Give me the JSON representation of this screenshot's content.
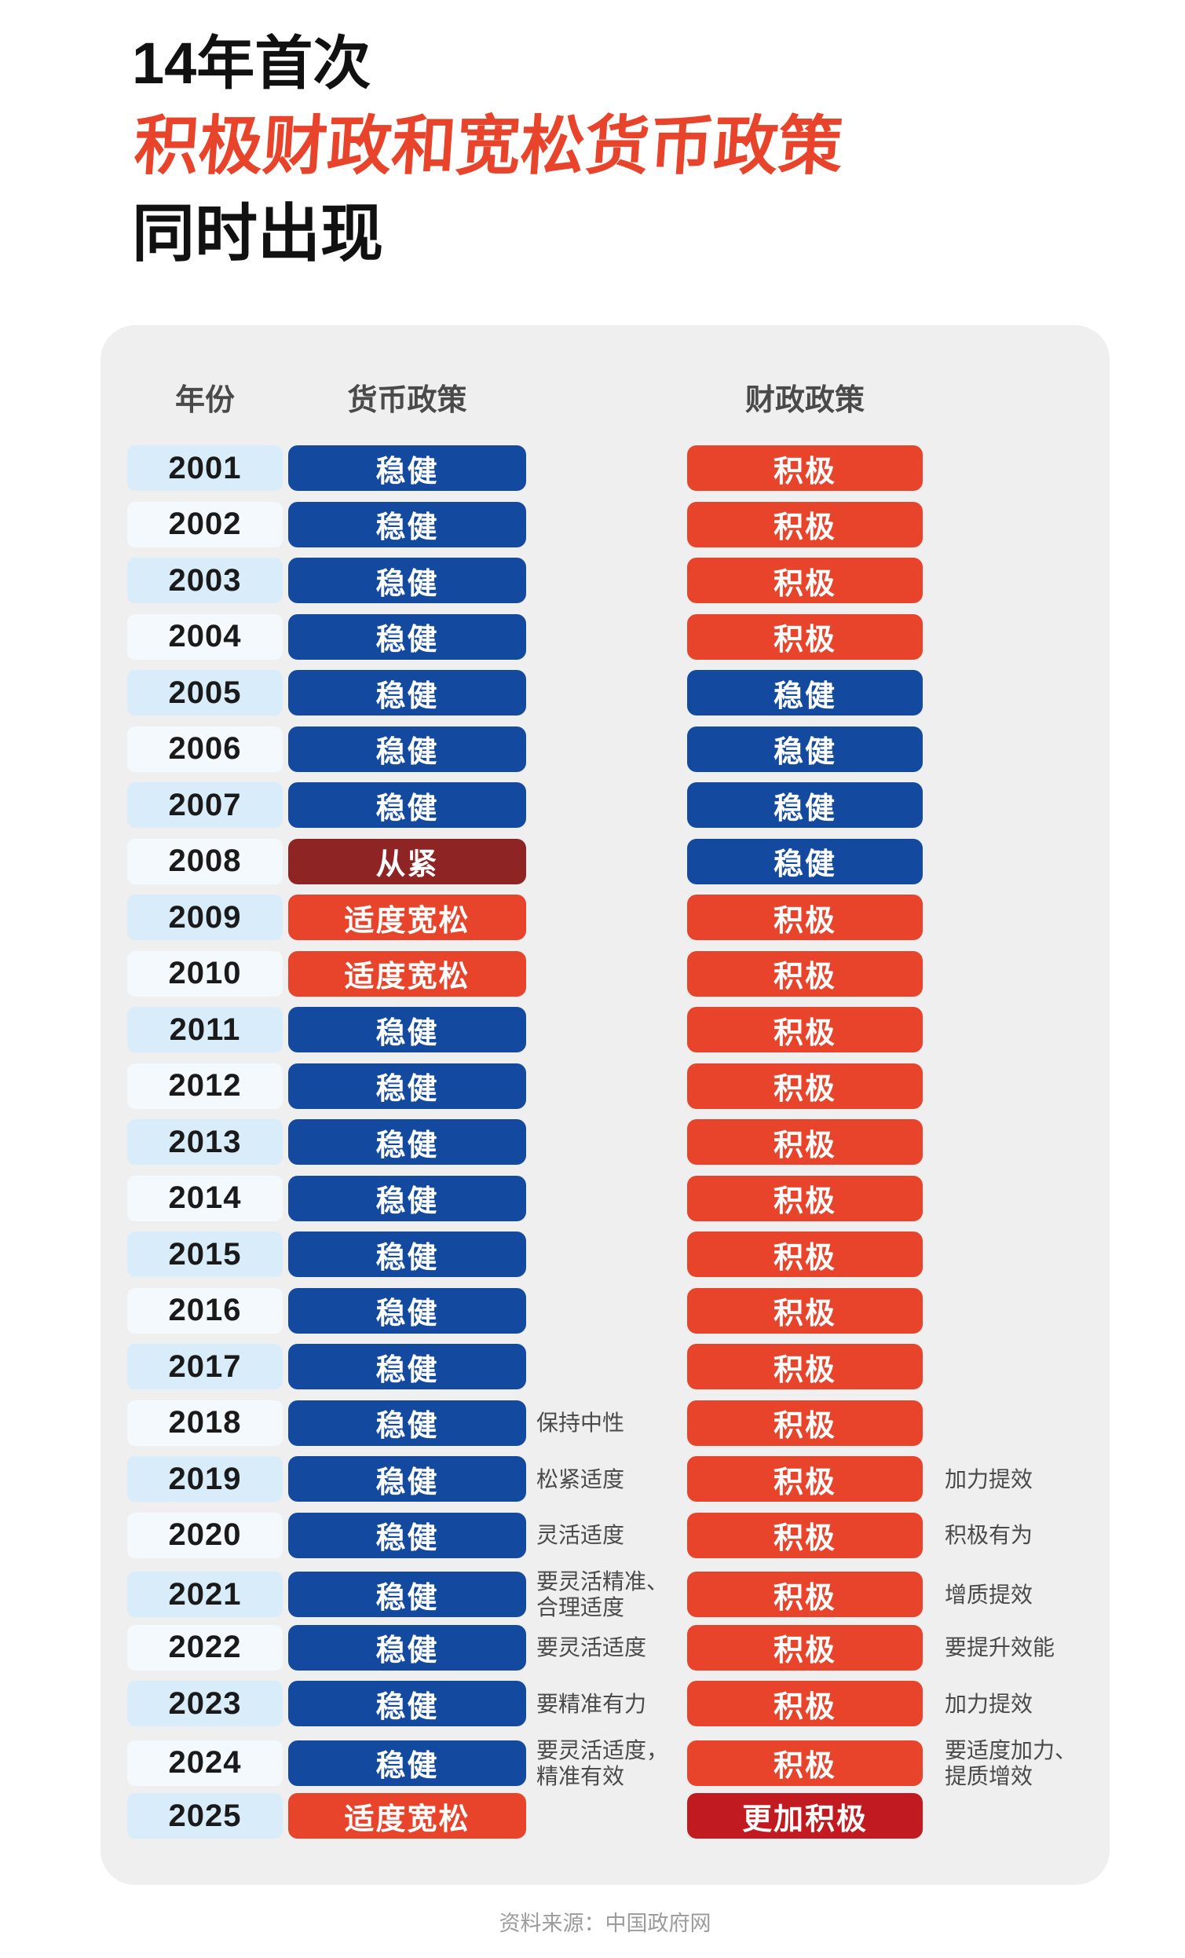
{
  "title": {
    "line1": "14年首次",
    "line2": "积极财政和宽松货币政策",
    "line3": "同时出现"
  },
  "table": {
    "headers": {
      "year": "年份",
      "monetary": "货币政策",
      "fiscal": "财政政策"
    },
    "rows": [
      {
        "year": "2001",
        "monetary": {
          "label": "稳健",
          "style": "blue"
        },
        "fiscal": {
          "label": "积极",
          "style": "red"
        }
      },
      {
        "year": "2002",
        "monetary": {
          "label": "稳健",
          "style": "blue"
        },
        "fiscal": {
          "label": "积极",
          "style": "red"
        }
      },
      {
        "year": "2003",
        "monetary": {
          "label": "稳健",
          "style": "blue"
        },
        "fiscal": {
          "label": "积极",
          "style": "red"
        }
      },
      {
        "year": "2004",
        "monetary": {
          "label": "稳健",
          "style": "blue"
        },
        "fiscal": {
          "label": "积极",
          "style": "red"
        }
      },
      {
        "year": "2005",
        "monetary": {
          "label": "稳健",
          "style": "blue"
        },
        "fiscal": {
          "label": "稳健",
          "style": "blue"
        }
      },
      {
        "year": "2006",
        "monetary": {
          "label": "稳健",
          "style": "blue"
        },
        "fiscal": {
          "label": "稳健",
          "style": "blue"
        }
      },
      {
        "year": "2007",
        "monetary": {
          "label": "稳健",
          "style": "blue"
        },
        "fiscal": {
          "label": "稳健",
          "style": "blue"
        }
      },
      {
        "year": "2008",
        "monetary": {
          "label": "从紧",
          "style": "maroon"
        },
        "fiscal": {
          "label": "稳健",
          "style": "blue"
        }
      },
      {
        "year": "2009",
        "monetary": {
          "label": "适度宽松",
          "style": "red"
        },
        "fiscal": {
          "label": "积极",
          "style": "red"
        }
      },
      {
        "year": "2010",
        "monetary": {
          "label": "适度宽松",
          "style": "red"
        },
        "fiscal": {
          "label": "积极",
          "style": "red"
        }
      },
      {
        "year": "2011",
        "monetary": {
          "label": "稳健",
          "style": "blue"
        },
        "fiscal": {
          "label": "积极",
          "style": "red"
        }
      },
      {
        "year": "2012",
        "monetary": {
          "label": "稳健",
          "style": "blue"
        },
        "fiscal": {
          "label": "积极",
          "style": "red"
        }
      },
      {
        "year": "2013",
        "monetary": {
          "label": "稳健",
          "style": "blue"
        },
        "fiscal": {
          "label": "积极",
          "style": "red"
        }
      },
      {
        "year": "2014",
        "monetary": {
          "label": "稳健",
          "style": "blue"
        },
        "fiscal": {
          "label": "积极",
          "style": "red"
        }
      },
      {
        "year": "2015",
        "monetary": {
          "label": "稳健",
          "style": "blue"
        },
        "fiscal": {
          "label": "积极",
          "style": "red"
        }
      },
      {
        "year": "2016",
        "monetary": {
          "label": "稳健",
          "style": "blue"
        },
        "fiscal": {
          "label": "积极",
          "style": "red"
        }
      },
      {
        "year": "2017",
        "monetary": {
          "label": "稳健",
          "style": "blue"
        },
        "fiscal": {
          "label": "积极",
          "style": "red"
        }
      },
      {
        "year": "2018",
        "monetary": {
          "label": "稳健",
          "style": "blue",
          "note": "保持中性"
        },
        "fiscal": {
          "label": "积极",
          "style": "red"
        }
      },
      {
        "year": "2019",
        "monetary": {
          "label": "稳健",
          "style": "blue",
          "note": "松紧适度"
        },
        "fiscal": {
          "label": "积极",
          "style": "red",
          "note": "加力提效"
        }
      },
      {
        "year": "2020",
        "monetary": {
          "label": "稳健",
          "style": "blue",
          "note": "灵活适度"
        },
        "fiscal": {
          "label": "积极",
          "style": "red",
          "note": "积极有为"
        }
      },
      {
        "year": "2021",
        "monetary": {
          "label": "稳健",
          "style": "blue",
          "note": "要灵活精准、\n合理适度"
        },
        "fiscal": {
          "label": "积极",
          "style": "red",
          "note": "增质提效"
        }
      },
      {
        "year": "2022",
        "monetary": {
          "label": "稳健",
          "style": "blue",
          "note": "要灵活适度"
        },
        "fiscal": {
          "label": "积极",
          "style": "red",
          "note": "要提升效能"
        }
      },
      {
        "year": "2023",
        "monetary": {
          "label": "稳健",
          "style": "blue",
          "note": "要精准有力"
        },
        "fiscal": {
          "label": "积极",
          "style": "red",
          "note": "加力提效"
        }
      },
      {
        "year": "2024",
        "monetary": {
          "label": "稳健",
          "style": "blue",
          "note": "要灵活适度，\n精准有效"
        },
        "fiscal": {
          "label": "积极",
          "style": "red",
          "note": "要适度加力、\n提质增效"
        }
      },
      {
        "year": "2025",
        "monetary": {
          "label": "适度宽松",
          "style": "red"
        },
        "fiscal": {
          "label": "更加积极",
          "style": "crimson"
        }
      }
    ]
  },
  "source": "资料来源：中国政府网",
  "colors": {
    "title_accent": "#e8432b",
    "blue": "#134a9f",
    "red": "#e8432b",
    "maroon": "#8e2524",
    "crimson": "#c11a20",
    "year_odd_bg": "#d9ecf9",
    "year_even_bg": "#f3f9fd",
    "panel_bg": "#efeff0"
  },
  "chart_data": {
    "type": "table",
    "title": "14年首次 积极财政和宽松货币政策 同时出现",
    "columns": [
      "年份",
      "货币政策",
      "货币政策备注",
      "财政政策",
      "财政政策备注"
    ],
    "rows": [
      [
        "2001",
        "稳健",
        "",
        "积极",
        ""
      ],
      [
        "2002",
        "稳健",
        "",
        "积极",
        ""
      ],
      [
        "2003",
        "稳健",
        "",
        "积极",
        ""
      ],
      [
        "2004",
        "稳健",
        "",
        "积极",
        ""
      ],
      [
        "2005",
        "稳健",
        "",
        "稳健",
        ""
      ],
      [
        "2006",
        "稳健",
        "",
        "稳健",
        ""
      ],
      [
        "2007",
        "稳健",
        "",
        "稳健",
        ""
      ],
      [
        "2008",
        "从紧",
        "",
        "稳健",
        ""
      ],
      [
        "2009",
        "适度宽松",
        "",
        "积极",
        ""
      ],
      [
        "2010",
        "适度宽松",
        "",
        "积极",
        ""
      ],
      [
        "2011",
        "稳健",
        "",
        "积极",
        ""
      ],
      [
        "2012",
        "稳健",
        "",
        "积极",
        ""
      ],
      [
        "2013",
        "稳健",
        "",
        "积极",
        ""
      ],
      [
        "2014",
        "稳健",
        "",
        "积极",
        ""
      ],
      [
        "2015",
        "稳健",
        "",
        "积极",
        ""
      ],
      [
        "2016",
        "稳健",
        "",
        "积极",
        ""
      ],
      [
        "2017",
        "稳健",
        "",
        "积极",
        ""
      ],
      [
        "2018",
        "稳健",
        "保持中性",
        "积极",
        ""
      ],
      [
        "2019",
        "稳健",
        "松紧适度",
        "积极",
        "加力提效"
      ],
      [
        "2020",
        "稳健",
        "灵活适度",
        "积极",
        "积极有为"
      ],
      [
        "2021",
        "稳健",
        "要灵活精准、合理适度",
        "积极",
        "增质提效"
      ],
      [
        "2022",
        "稳健",
        "要灵活适度",
        "积极",
        "要提升效能"
      ],
      [
        "2023",
        "稳健",
        "要精准有力",
        "积极",
        "加力提效"
      ],
      [
        "2024",
        "稳健",
        "要灵活适度，精准有效",
        "积极",
        "要适度加力、提质增效"
      ],
      [
        "2025",
        "适度宽松",
        "",
        "更加积极",
        ""
      ]
    ],
    "legend_colors": {
      "稳健/从紧": "blue or maroon pill",
      "积极/适度宽松/更加积极": "red or crimson pill"
    },
    "source": "资料来源：中国政府网"
  }
}
